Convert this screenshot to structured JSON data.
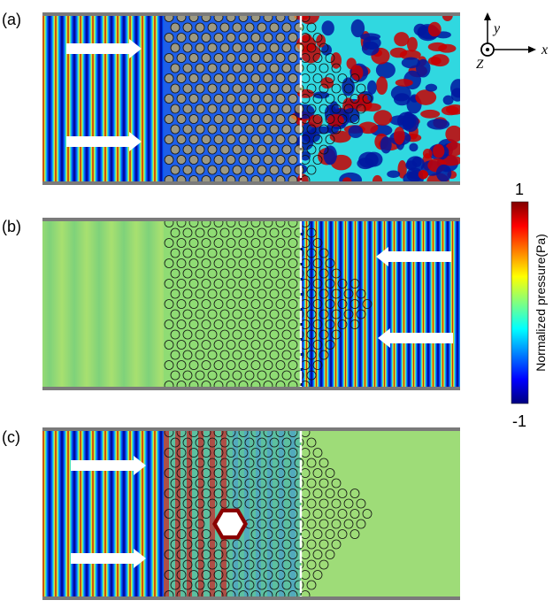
{
  "panels": [
    {
      "label": "(a)"
    },
    {
      "label": "(b)"
    },
    {
      "label": "(c)"
    }
  ],
  "axes": {
    "y": "y",
    "x": "x",
    "z": "Z"
  },
  "colorbar": {
    "max_label": "1",
    "min_label": "-1",
    "label": "Normalized pressure(Pa)"
  }
}
